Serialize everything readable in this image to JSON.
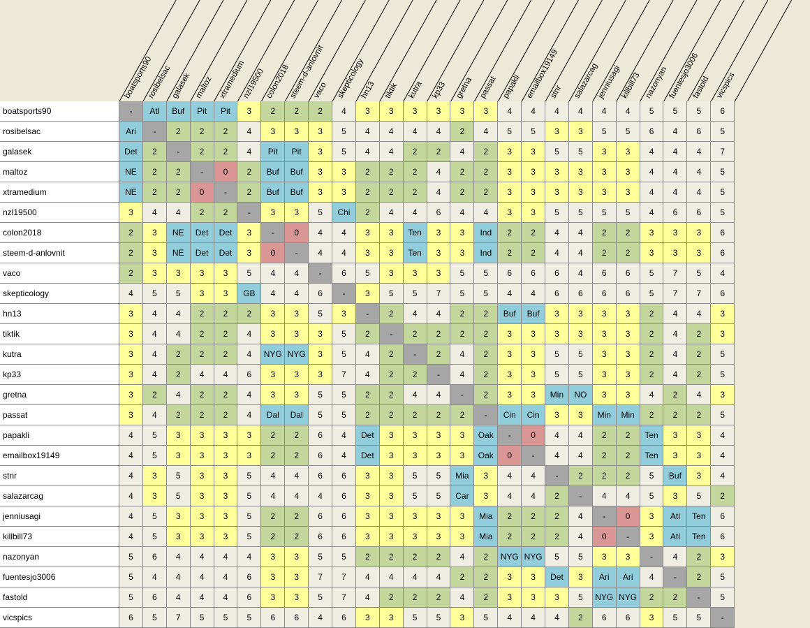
{
  "columns": [
    "boatsports90",
    "rosibelsac",
    "galasek",
    "maltoz",
    "xtramedium",
    "nzl19500",
    "colon2018",
    "steem-d-anlovnit",
    "vaco",
    "skepticology",
    "hn13",
    "tiktik",
    "kutra",
    "kp33",
    "gretna",
    "passat",
    "papakli",
    "emailbox19149",
    "stnr",
    "salazarcag",
    "jenniusagi",
    "killbill73",
    "nazonyan",
    "fuentesjo3006",
    "fastold",
    "vicspics"
  ],
  "rows": [
    {
      "label": "boatsports90",
      "cells": [
        "-",
        "Atl",
        "Buf",
        "Pit",
        "Pit",
        "3",
        "2",
        "2",
        "2",
        "4",
        "3",
        "3",
        "3",
        "3",
        "3",
        "3",
        "4",
        "4",
        "4",
        "4",
        "4",
        "4",
        "5",
        "5",
        "5",
        "6"
      ]
    },
    {
      "label": "rosibelsac",
      "cells": [
        "Ari",
        "-",
        "2",
        "2",
        "2",
        "4",
        "3",
        "3",
        "3",
        "5",
        "4",
        "4",
        "4",
        "4",
        "2",
        "4",
        "5",
        "5",
        "3",
        "3",
        "5",
        "5",
        "6",
        "4",
        "6",
        "5"
      ]
    },
    {
      "label": "galasek",
      "cells": [
        "Det",
        "2",
        "-",
        "2",
        "2",
        "4",
        "Pit",
        "Pit",
        "3",
        "5",
        "4",
        "4",
        "2",
        "2",
        "4",
        "2",
        "3",
        "3",
        "5",
        "5",
        "3",
        "3",
        "4",
        "4",
        "4",
        "7"
      ]
    },
    {
      "label": "maltoz",
      "cells": [
        "NE",
        "2",
        "2",
        "-",
        "0",
        "2",
        "Buf",
        "Buf",
        "3",
        "3",
        "2",
        "2",
        "2",
        "4",
        "2",
        "2",
        "3",
        "3",
        "3",
        "3",
        "3",
        "3",
        "4",
        "4",
        "4",
        "5"
      ]
    },
    {
      "label": "xtramedium",
      "cells": [
        "NE",
        "2",
        "2",
        "0",
        "-",
        "2",
        "Buf",
        "Buf",
        "3",
        "3",
        "2",
        "2",
        "2",
        "4",
        "2",
        "2",
        "3",
        "3",
        "3",
        "3",
        "3",
        "3",
        "4",
        "4",
        "4",
        "5"
      ]
    },
    {
      "label": "nzl19500",
      "cells": [
        "3",
        "4",
        "4",
        "2",
        "2",
        "-",
        "3",
        "3",
        "5",
        "Chi",
        "2",
        "4",
        "4",
        "6",
        "4",
        "4",
        "3",
        "3",
        "5",
        "5",
        "5",
        "5",
        "4",
        "6",
        "6",
        "5"
      ]
    },
    {
      "label": "colon2018",
      "cells": [
        "2",
        "3",
        "NE",
        "Det",
        "Det",
        "3",
        "-",
        "0",
        "4",
        "4",
        "3",
        "3",
        "Ten",
        "3",
        "3",
        "Ind",
        "2",
        "2",
        "4",
        "4",
        "2",
        "2",
        "3",
        "3",
        "3",
        "6"
      ]
    },
    {
      "label": "steem-d-anlovnit",
      "cells": [
        "2",
        "3",
        "NE",
        "Det",
        "Det",
        "3",
        "0",
        "-",
        "4",
        "4",
        "3",
        "3",
        "Ten",
        "3",
        "3",
        "Ind",
        "2",
        "2",
        "4",
        "4",
        "2",
        "2",
        "3",
        "3",
        "3",
        "6"
      ]
    },
    {
      "label": "vaco",
      "cells": [
        "2",
        "3",
        "3",
        "3",
        "3",
        "5",
        "4",
        "4",
        "-",
        "6",
        "5",
        "3",
        "3",
        "3",
        "5",
        "5",
        "6",
        "6",
        "6",
        "4",
        "6",
        "6",
        "5",
        "7",
        "5",
        "4"
      ]
    },
    {
      "label": "skepticology",
      "cells": [
        "4",
        "5",
        "5",
        "3",
        "3",
        "GB",
        "4",
        "4",
        "6",
        "-",
        "3",
        "5",
        "5",
        "7",
        "5",
        "5",
        "4",
        "4",
        "6",
        "6",
        "6",
        "6",
        "5",
        "7",
        "7",
        "6"
      ]
    },
    {
      "label": "hn13",
      "cells": [
        "3",
        "4",
        "4",
        "2",
        "2",
        "2",
        "3",
        "3",
        "5",
        "3",
        "-",
        "2",
        "4",
        "4",
        "2",
        "2",
        "Buf",
        "Buf",
        "3",
        "3",
        "3",
        "3",
        "2",
        "4",
        "4",
        "3"
      ]
    },
    {
      "label": "tiktik",
      "cells": [
        "3",
        "4",
        "4",
        "2",
        "2",
        "4",
        "3",
        "3",
        "3",
        "5",
        "2",
        "-",
        "2",
        "2",
        "2",
        "2",
        "3",
        "3",
        "3",
        "3",
        "3",
        "3",
        "2",
        "4",
        "2",
        "3"
      ]
    },
    {
      "label": "kutra",
      "cells": [
        "3",
        "4",
        "2",
        "2",
        "2",
        "4",
        "NYG",
        "NYG",
        "3",
        "5",
        "4",
        "2",
        "-",
        "2",
        "4",
        "2",
        "3",
        "3",
        "5",
        "5",
        "3",
        "3",
        "2",
        "4",
        "2",
        "5"
      ]
    },
    {
      "label": "kp33",
      "cells": [
        "3",
        "4",
        "2",
        "4",
        "4",
        "6",
        "3",
        "3",
        "3",
        "7",
        "4",
        "2",
        "2",
        "-",
        "4",
        "2",
        "3",
        "3",
        "5",
        "5",
        "3",
        "3",
        "2",
        "4",
        "2",
        "5"
      ]
    },
    {
      "label": "gretna",
      "cells": [
        "3",
        "2",
        "4",
        "2",
        "2",
        "4",
        "3",
        "3",
        "5",
        "5",
        "2",
        "2",
        "4",
        "4",
        "-",
        "2",
        "3",
        "3",
        "Min",
        "NO",
        "3",
        "3",
        "4",
        "2",
        "4",
        "3"
      ]
    },
    {
      "label": "passat",
      "cells": [
        "3",
        "4",
        "2",
        "2",
        "2",
        "4",
        "Dal",
        "Dal",
        "5",
        "5",
        "2",
        "2",
        "2",
        "2",
        "2",
        "-",
        "Cin",
        "Cin",
        "3",
        "3",
        "Min",
        "Min",
        "2",
        "2",
        "2",
        "5"
      ]
    },
    {
      "label": "papakli",
      "cells": [
        "4",
        "5",
        "3",
        "3",
        "3",
        "3",
        "2",
        "2",
        "6",
        "4",
        "Det",
        "3",
        "3",
        "3",
        "3",
        "Oak",
        "-",
        "0",
        "4",
        "4",
        "2",
        "2",
        "Ten",
        "3",
        "3",
        "4"
      ]
    },
    {
      "label": "emailbox19149",
      "cells": [
        "4",
        "5",
        "3",
        "3",
        "3",
        "3",
        "2",
        "2",
        "6",
        "4",
        "Det",
        "3",
        "3",
        "3",
        "3",
        "Oak",
        "0",
        "-",
        "4",
        "4",
        "2",
        "2",
        "Ten",
        "3",
        "3",
        "4"
      ]
    },
    {
      "label": "stnr",
      "cells": [
        "4",
        "3",
        "5",
        "3",
        "3",
        "5",
        "4",
        "4",
        "6",
        "6",
        "3",
        "3",
        "5",
        "5",
        "Mia",
        "3",
        "4",
        "4",
        "-",
        "2",
        "2",
        "2",
        "5",
        "Buf",
        "3",
        "4"
      ]
    },
    {
      "label": "salazarcag",
      "cells": [
        "4",
        "3",
        "5",
        "3",
        "3",
        "5",
        "4",
        "4",
        "4",
        "6",
        "3",
        "3",
        "5",
        "5",
        "Car",
        "3",
        "4",
        "4",
        "2",
        "-",
        "4",
        "4",
        "5",
        "3",
        "5",
        "2"
      ]
    },
    {
      "label": "jenniusagi",
      "cells": [
        "4",
        "5",
        "3",
        "3",
        "3",
        "5",
        "2",
        "2",
        "6",
        "6",
        "3",
        "3",
        "3",
        "3",
        "3",
        "Mia",
        "2",
        "2",
        "2",
        "4",
        "-",
        "0",
        "3",
        "Atl",
        "Ten",
        "6"
      ]
    },
    {
      "label": "killbill73",
      "cells": [
        "4",
        "5",
        "3",
        "3",
        "3",
        "5",
        "2",
        "2",
        "6",
        "6",
        "3",
        "3",
        "3",
        "3",
        "3",
        "Mia",
        "2",
        "2",
        "2",
        "4",
        "0",
        "-",
        "3",
        "Atl",
        "Ten",
        "6"
      ]
    },
    {
      "label": "nazonyan",
      "cells": [
        "5",
        "6",
        "4",
        "4",
        "4",
        "4",
        "3",
        "3",
        "5",
        "5",
        "2",
        "2",
        "2",
        "2",
        "4",
        "2",
        "NYG",
        "NYG",
        "5",
        "5",
        "3",
        "3",
        "-",
        "4",
        "2",
        "3"
      ]
    },
    {
      "label": "fuentesjo3006",
      "cells": [
        "5",
        "4",
        "4",
        "4",
        "4",
        "6",
        "3",
        "3",
        "7",
        "7",
        "4",
        "4",
        "4",
        "4",
        "2",
        "2",
        "3",
        "3",
        "Det",
        "3",
        "Ari",
        "Ari",
        "4",
        "-",
        "2",
        "5"
      ]
    },
    {
      "label": "fastold",
      "cells": [
        "5",
        "6",
        "4",
        "4",
        "4",
        "6",
        "3",
        "3",
        "5",
        "7",
        "4",
        "2",
        "2",
        "2",
        "4",
        "2",
        "3",
        "3",
        "3",
        "5",
        "NYG",
        "NYG",
        "2",
        "2",
        "-",
        "5"
      ]
    },
    {
      "label": "vicspics",
      "cells": [
        "6",
        "5",
        "7",
        "5",
        "5",
        "5",
        "6",
        "6",
        "4",
        "6",
        "3",
        "3",
        "5",
        "5",
        "3",
        "5",
        "4",
        "4",
        "4",
        "2",
        "6",
        "6",
        "3",
        "5",
        "5",
        "-"
      ]
    }
  ],
  "colors": {
    "dash": "#a6a6a6",
    "zero": "#da9694",
    "team": "#92cddc",
    "two": "#c3d69b",
    "three": "#ffff99",
    "other": "#f0ede2"
  }
}
